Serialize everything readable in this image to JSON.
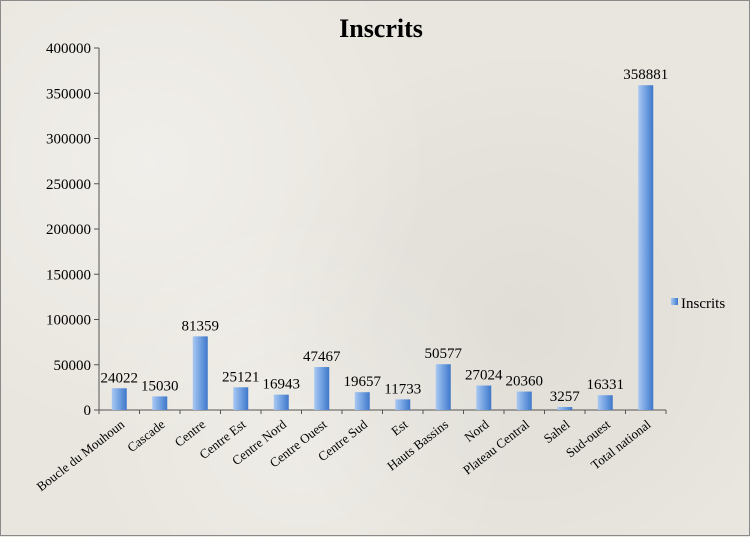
{
  "chart_data": {
    "type": "bar",
    "title": "Inscrits",
    "xlabel": "",
    "ylabel": "",
    "ylim": [
      0,
      400000
    ],
    "yticks": [
      0,
      50000,
      100000,
      150000,
      200000,
      250000,
      300000,
      350000,
      400000
    ],
    "categories": [
      "Boucle du Mouhoun",
      "Cascade",
      "Centre",
      "Centre Est",
      "Centre Nord",
      "Centre Ouest",
      "Centre Sud",
      "Est",
      "Hauts Bassins",
      "Nord",
      "Plateau Central",
      "Sahel",
      "Sud-ouest",
      "Total national"
    ],
    "series": [
      {
        "name": "Inscrits",
        "values": [
          24022,
          15030,
          81359,
          25121,
          16943,
          47467,
          19657,
          11733,
          50577,
          27024,
          20360,
          3257,
          16331,
          358881
        ]
      }
    ],
    "legend_position": "right",
    "grid": false,
    "colors": {
      "bar_light": "#a9c8f2",
      "bar_dark": "#3f77c9"
    }
  }
}
